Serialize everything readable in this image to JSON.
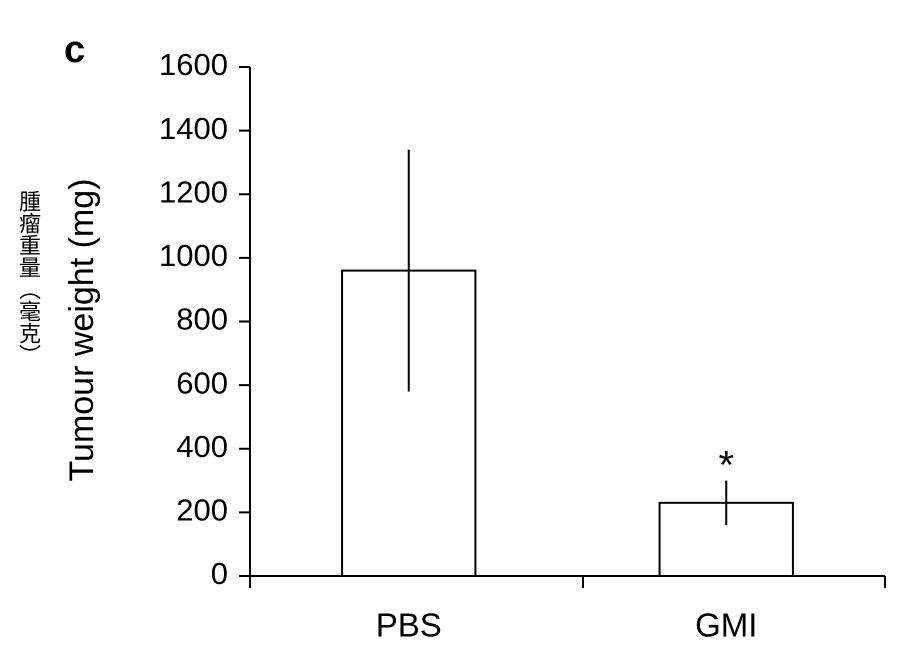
{
  "chart_data": {
    "type": "bar",
    "panel_label": "c",
    "ylabel": "Tumour weight (mg)",
    "note": "腫瘤重量（毫克）",
    "categories": [
      "PBS",
      "GMI"
    ],
    "values": [
      960,
      230
    ],
    "errors": [
      380,
      70
    ],
    "annotations": [
      "",
      "*"
    ],
    "color": "#ffffff",
    "edge_color": "#000000",
    "ylim": [
      0,
      1600
    ],
    "yticks": [
      0,
      200,
      400,
      600,
      800,
      1000,
      1200,
      1400,
      1600
    ],
    "grid": false
  }
}
